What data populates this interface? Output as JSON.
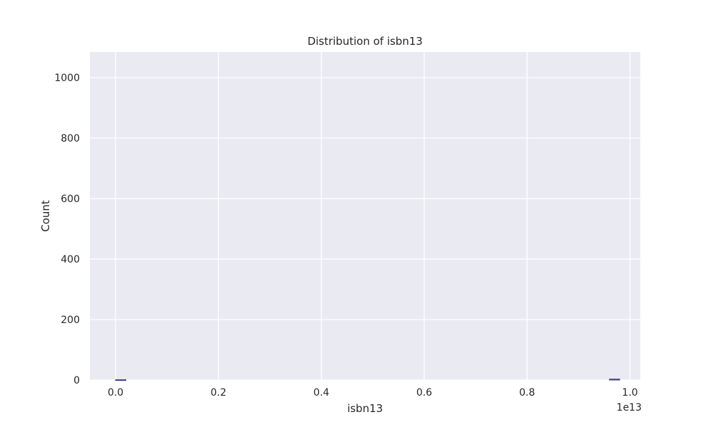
{
  "chart_data": {
    "type": "bar",
    "title": "Distribution of isbn13",
    "xlabel": "isbn13",
    "ylabel": "Count",
    "x_offset_label": "1e13",
    "xlim": [
      -0.05,
      1.02
    ],
    "ylim": [
      0,
      1085
    ],
    "x_ticks": [
      0.0,
      0.2,
      0.4,
      0.6,
      0.8,
      1.0
    ],
    "x_tick_labels": [
      "0.0",
      "0.2",
      "0.4",
      "0.6",
      "0.8",
      "1.0"
    ],
    "y_ticks": [
      0,
      200,
      400,
      600,
      800,
      1000
    ],
    "y_tick_labels": [
      "0",
      "200",
      "400",
      "600",
      "800",
      "1000"
    ],
    "grid": true,
    "bins": [
      {
        "x0": 0.0,
        "x1": 0.02,
        "count": 1
      },
      {
        "x0": 0.96,
        "x1": 0.98,
        "count": 3
      }
    ],
    "colors": {
      "plot_bg": "#eaeaf2",
      "grid": "#ffffff",
      "bar": "#4c72b0",
      "bar_edge": "#3a3a8c"
    }
  }
}
